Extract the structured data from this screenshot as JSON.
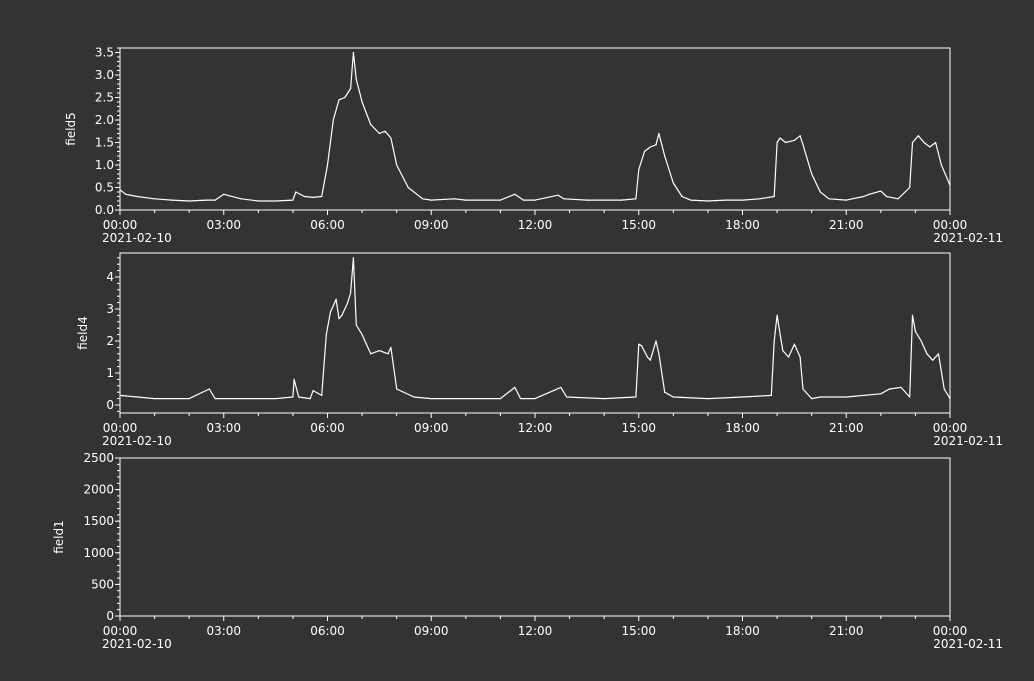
{
  "colors": {
    "background": "#333333",
    "foreground": "#ffffff"
  },
  "x_ticks": [
    "00:00",
    "03:00",
    "06:00",
    "09:00",
    "12:00",
    "15:00",
    "18:00",
    "21:00",
    "00:00"
  ],
  "x_tick_hours": [
    0,
    3,
    6,
    9,
    12,
    15,
    18,
    21,
    24
  ],
  "date_start": "2021-02-10",
  "date_end": "2021-02-11",
  "chart_data": [
    {
      "type": "line",
      "ylabel": "field5",
      "ylim": [
        0,
        3.6
      ],
      "yticks": [
        0.0,
        0.5,
        1.0,
        1.5,
        2.0,
        2.5,
        3.0,
        3.5
      ],
      "ytick_labels": [
        "0.0",
        "0.5",
        "1.0",
        "1.5",
        "2.0",
        "2.5",
        "3.0",
        "3.5"
      ],
      "series": [
        {
          "x": [
            "2021-02-10 00:00",
            "2021-02-10 00:10",
            "2021-02-10 00:30",
            "2021-02-10 01:00",
            "2021-02-10 01:30",
            "2021-02-10 02:00",
            "2021-02-10 02:30",
            "2021-02-10 02:45",
            "2021-02-10 03:00",
            "2021-02-10 03:30",
            "2021-02-10 04:00",
            "2021-02-10 04:30",
            "2021-02-10 05:00",
            "2021-02-10 05:05",
            "2021-02-10 05:20",
            "2021-02-10 05:35",
            "2021-02-10 05:50",
            "2021-02-10 06:00",
            "2021-02-10 06:10",
            "2021-02-10 06:20",
            "2021-02-10 06:30",
            "2021-02-10 06:40",
            "2021-02-10 06:45",
            "2021-02-10 06:50",
            "2021-02-10 07:00",
            "2021-02-10 07:15",
            "2021-02-10 07:30",
            "2021-02-10 07:40",
            "2021-02-10 07:50",
            "2021-02-10 08:00",
            "2021-02-10 08:20",
            "2021-02-10 08:45",
            "2021-02-10 09:00",
            "2021-02-10 09:40",
            "2021-02-10 10:00",
            "2021-02-10 11:00",
            "2021-02-10 11:25",
            "2021-02-10 11:40",
            "2021-02-10 12:00",
            "2021-02-10 12:40",
            "2021-02-10 12:50",
            "2021-02-10 13:30",
            "2021-02-10 14:30",
            "2021-02-10 14:55",
            "2021-02-10 15:00",
            "2021-02-10 15:10",
            "2021-02-10 15:20",
            "2021-02-10 15:30",
            "2021-02-10 15:35",
            "2021-02-10 15:45",
            "2021-02-10 16:00",
            "2021-02-10 16:15",
            "2021-02-10 16:30",
            "2021-02-10 17:00",
            "2021-02-10 17:30",
            "2021-02-10 18:00",
            "2021-02-10 18:30",
            "2021-02-10 18:55",
            "2021-02-10 19:00",
            "2021-02-10 19:05",
            "2021-02-10 19:15",
            "2021-02-10 19:30",
            "2021-02-10 19:40",
            "2021-02-10 19:45",
            "2021-02-10 20:00",
            "2021-02-10 20:15",
            "2021-02-10 20:30",
            "2021-02-10 21:00",
            "2021-02-10 21:30",
            "2021-02-10 21:40",
            "2021-02-10 22:00",
            "2021-02-10 22:10",
            "2021-02-10 22:30",
            "2021-02-10 22:50",
            "2021-02-10 22:55",
            "2021-02-10 23:05",
            "2021-02-10 23:15",
            "2021-02-10 23:25",
            "2021-02-10 23:35",
            "2021-02-10 23:45",
            "2021-02-11 00:00"
          ],
          "values": [
            0.45,
            0.35,
            0.3,
            0.25,
            0.22,
            0.2,
            0.22,
            0.22,
            0.35,
            0.25,
            0.2,
            0.2,
            0.22,
            0.4,
            0.3,
            0.28,
            0.3,
            1.0,
            2.0,
            2.45,
            2.5,
            2.7,
            3.5,
            2.9,
            2.4,
            1.9,
            1.7,
            1.75,
            1.6,
            1.0,
            0.5,
            0.25,
            0.22,
            0.25,
            0.22,
            0.22,
            0.35,
            0.22,
            0.22,
            0.33,
            0.25,
            0.22,
            0.22,
            0.25,
            0.9,
            1.3,
            1.4,
            1.45,
            1.7,
            1.2,
            0.6,
            0.3,
            0.22,
            0.2,
            0.22,
            0.22,
            0.25,
            0.3,
            1.5,
            1.6,
            1.5,
            1.55,
            1.65,
            1.45,
            0.8,
            0.4,
            0.25,
            0.22,
            0.3,
            0.35,
            0.42,
            0.3,
            0.25,
            0.5,
            1.5,
            1.65,
            1.5,
            1.4,
            1.5,
            1.0,
            0.55
          ]
        }
      ]
    },
    {
      "type": "line",
      "ylabel": "field4",
      "ylim": [
        -0.25,
        4.75
      ],
      "yticks": [
        0,
        1,
        2,
        3,
        4
      ],
      "ytick_labels": [
        "0",
        "1",
        "2",
        "3",
        "4"
      ],
      "series": [
        {
          "x": [
            "2021-02-10 00:00",
            "2021-02-10 00:30",
            "2021-02-10 01:00",
            "2021-02-10 01:30",
            "2021-02-10 02:00",
            "2021-02-10 02:35",
            "2021-02-10 02:45",
            "2021-02-10 03:00",
            "2021-02-10 03:30",
            "2021-02-10 04:00",
            "2021-02-10 04:30",
            "2021-02-10 05:00",
            "2021-02-10 05:02",
            "2021-02-10 05:10",
            "2021-02-10 05:30",
            "2021-02-10 05:35",
            "2021-02-10 05:50",
            "2021-02-10 05:58",
            "2021-02-10 06:05",
            "2021-02-10 06:15",
            "2021-02-10 06:20",
            "2021-02-10 06:25",
            "2021-02-10 06:35",
            "2021-02-10 06:40",
            "2021-02-10 06:45",
            "2021-02-10 06:50",
            "2021-02-10 07:00",
            "2021-02-10 07:15",
            "2021-02-10 07:30",
            "2021-02-10 07:45",
            "2021-02-10 07:50",
            "2021-02-10 08:00",
            "2021-02-10 08:30",
            "2021-02-10 09:00",
            "2021-02-10 10:00",
            "2021-02-10 11:00",
            "2021-02-10 11:25",
            "2021-02-10 11:35",
            "2021-02-10 12:00",
            "2021-02-10 12:45",
            "2021-02-10 12:55",
            "2021-02-10 14:00",
            "2021-02-10 14:55",
            "2021-02-10 15:00",
            "2021-02-10 15:05",
            "2021-02-10 15:15",
            "2021-02-10 15:20",
            "2021-02-10 15:30",
            "2021-02-10 15:35",
            "2021-02-10 15:45",
            "2021-02-10 16:00",
            "2021-02-10 17:00",
            "2021-02-10 18:00",
            "2021-02-10 18:50",
            "2021-02-10 18:55",
            "2021-02-10 19:00",
            "2021-02-10 19:10",
            "2021-02-10 19:20",
            "2021-02-10 19:30",
            "2021-02-10 19:40",
            "2021-02-10 19:45",
            "2021-02-10 20:00",
            "2021-02-10 20:15",
            "2021-02-10 21:00",
            "2021-02-10 22:00",
            "2021-02-10 22:15",
            "2021-02-10 22:35",
            "2021-02-10 22:50",
            "2021-02-10 22:55",
            "2021-02-10 23:00",
            "2021-02-10 23:10",
            "2021-02-10 23:20",
            "2021-02-10 23:30",
            "2021-02-10 23:40",
            "2021-02-10 23:50",
            "2021-02-11 00:00"
          ],
          "values": [
            0.3,
            0.25,
            0.2,
            0.2,
            0.2,
            0.5,
            0.2,
            0.2,
            0.2,
            0.2,
            0.2,
            0.25,
            0.8,
            0.25,
            0.2,
            0.45,
            0.3,
            2.2,
            2.9,
            3.3,
            2.7,
            2.8,
            3.2,
            3.5,
            4.6,
            2.5,
            2.2,
            1.6,
            1.7,
            1.6,
            1.8,
            0.5,
            0.25,
            0.2,
            0.2,
            0.2,
            0.55,
            0.2,
            0.2,
            0.55,
            0.25,
            0.2,
            0.25,
            1.9,
            1.85,
            1.5,
            1.4,
            2.0,
            1.6,
            0.4,
            0.25,
            0.2,
            0.25,
            0.3,
            2.0,
            2.8,
            1.7,
            1.5,
            1.9,
            1.5,
            0.5,
            0.2,
            0.25,
            0.25,
            0.35,
            0.5,
            0.55,
            0.25,
            2.8,
            2.3,
            2.0,
            1.6,
            1.4,
            1.6,
            0.5,
            0.2
          ]
        }
      ]
    },
    {
      "type": "line",
      "ylabel": "field1",
      "ylim": [
        0,
        2500
      ],
      "yticks": [
        0,
        500,
        1000,
        1500,
        2000,
        2500
      ],
      "ytick_labels": [
        "0",
        "500",
        "1000",
        "1500",
        "2000",
        "2500"
      ],
      "series": []
    }
  ]
}
